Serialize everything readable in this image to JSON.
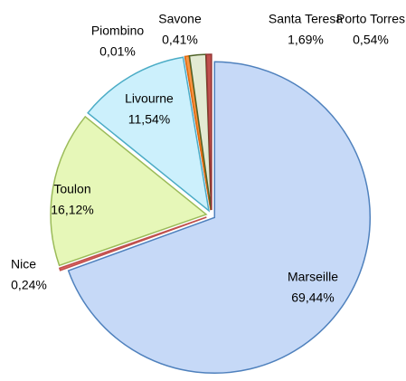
{
  "chart_data": {
    "type": "pie",
    "categories": [
      "Marseille",
      "Nice",
      "Toulon",
      "Livourne",
      "Piombino",
      "Savone",
      "Santa Teresa",
      "Porto Torres"
    ],
    "values": [
      69.44,
      0.24,
      16.12,
      11.54,
      0.01,
      0.41,
      1.69,
      0.54
    ],
    "value_labels": [
      "69,44%",
      "0,24%",
      "16,12%",
      "11,54%",
      "0,01%",
      "0,41%",
      "1,69%",
      "0,54%"
    ],
    "colors": [
      "#c6d9f7",
      "#e06666",
      "#e6f7b8",
      "#ccf0fc",
      "#b3a2c7",
      "#f79646",
      "#e3ead3",
      "#c0504d"
    ]
  }
}
